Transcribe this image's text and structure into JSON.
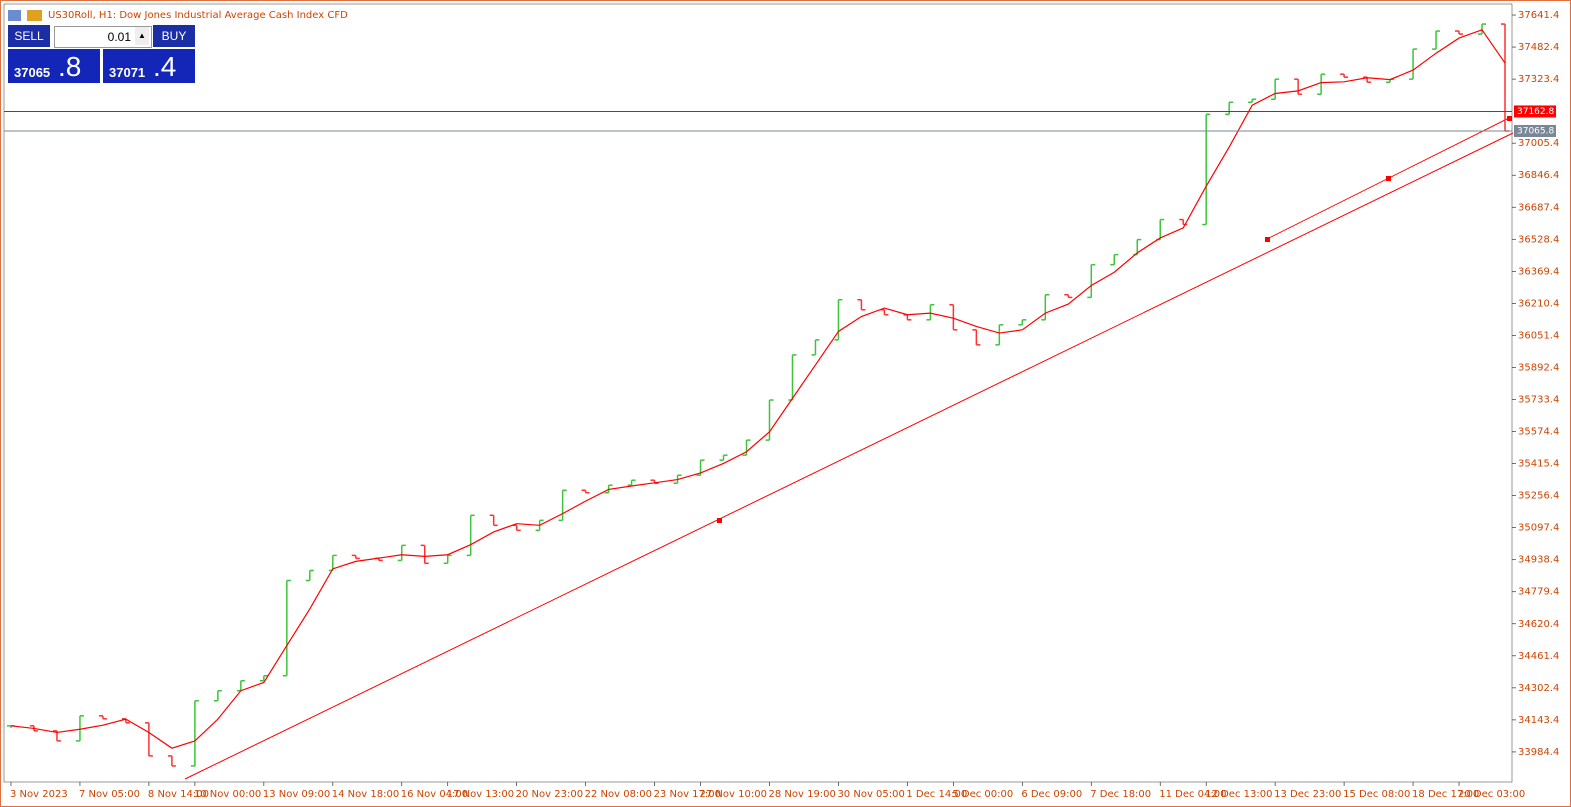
{
  "chart_data": {
    "type": "ohlc",
    "title": "US30Roll, H1:  Dow Jones Industrial Average Cash Index CFD",
    "categories": [
      "3 Nov 2023",
      null,
      null,
      "7 Nov 05:00",
      null,
      null,
      "8 Nov 14:00",
      null,
      "10 Nov 00:00",
      null,
      null,
      "13 Nov 09:00",
      null,
      null,
      "14 Nov 18:00",
      null,
      null,
      "16 Nov 04:00",
      null,
      "17 Nov 13:00",
      null,
      null,
      "20 Nov 23:00",
      null,
      null,
      "22 Nov 08:00",
      null,
      null,
      "23 Nov 17:00",
      null,
      "27 Nov 10:00",
      null,
      null,
      "28 Nov 19:00",
      null,
      null,
      "30 Nov 05:00",
      null,
      null,
      "1 Dec 14:00",
      null,
      "5 Dec 00:00",
      null,
      null,
      "6 Dec 09:00",
      null,
      null,
      "7 Dec 18:00",
      null,
      null,
      "11 Dec 04:00",
      null,
      "12 Dec 13:00",
      null,
      null,
      "13 Dec 23:00",
      null,
      null,
      "15 Dec 08:00",
      null,
      null,
      "18 Dec 17:00",
      null,
      "20 Dec 03:00",
      null,
      null
    ],
    "close": [
      34113.8,
      34088.9,
      34039.1,
      34163.5,
      34148.6,
      34128.7,
      33964.5,
      33914.7,
      34238.2,
      34287.9,
      34337.7,
      34362.5,
      34835.2,
      34885.0,
      34959.6,
      34945.0,
      34934.7,
      35009.4,
      34920.3,
      34959.6,
      35158.6,
      35108.9,
      35084.0,
      35133.7,
      35283.0,
      35270.5,
      35307.9,
      35332.8,
      35317.8,
      35357.6,
      35432.3,
      35457.2,
      35531.8,
      35730.8,
      35954.7,
      36029.3,
      36228.4,
      36178.6,
      36153.7,
      36128.8,
      36203.5,
      36079.1,
      36004.5,
      36104.0,
      36128.8,
      36253.2,
      36240.0,
      36402.5,
      36452.3,
      36526.9,
      36626.4,
      36601.5,
      37148.8,
      37208.5,
      37223.5,
      37323.0,
      37248.3,
      37347.8,
      37332.9,
      37308.0,
      37323.0,
      37472.2,
      37561.8,
      37546.9,
      37596.6,
      37065.8
    ],
    "up_color": "#3cc43c",
    "down_color": "#ff3030",
    "ma": {
      "color": "#ff0000",
      "values": [
        34114,
        34101,
        34081,
        34097,
        34117,
        34147,
        34081,
        34003,
        34039,
        34147,
        34288,
        34329,
        34512,
        34694,
        34893,
        34930,
        34946,
        34963,
        34955,
        34963,
        35013,
        35076,
        35117,
        35109,
        35167,
        35229,
        35287,
        35304,
        35320,
        35336,
        35369,
        35416,
        35474,
        35573,
        35739,
        35905,
        36071,
        36145,
        36187,
        36154,
        36162,
        36137,
        36096,
        36063,
        36079,
        36162,
        36207,
        36299,
        36365,
        36461,
        36535,
        36585,
        36792,
        36986,
        37194,
        37252,
        37265,
        37306,
        37310,
        37330,
        37321,
        37368,
        37452,
        37527,
        37568,
        37403
      ]
    },
    "levels": [
      {
        "value": 37162.8,
        "color": "#ff0000"
      },
      {
        "value": 37065.8,
        "color": "#7a8796"
      }
    ],
    "ylim": [
      33835.1,
      37696.1
    ],
    "yticks": [
      33984.4,
      34143.4,
      34302.4,
      34461.4,
      34620.4,
      34779.4,
      34938.4,
      35097.4,
      35256.4,
      35415.4,
      35574.4,
      35733.4,
      35892.4,
      36051.4,
      36210.4,
      36369.4,
      36528.4,
      36687.4,
      36846.4,
      37005.4,
      37323.4,
      37482.4,
      37641.4
    ]
  },
  "trade_panel": {
    "sell": "SELL",
    "buy": "BUY",
    "volume": "0.01",
    "bid_main": "37065",
    "bid_fraction": ".8",
    "ask_main": "37071",
    "ask_fraction": ".4"
  }
}
